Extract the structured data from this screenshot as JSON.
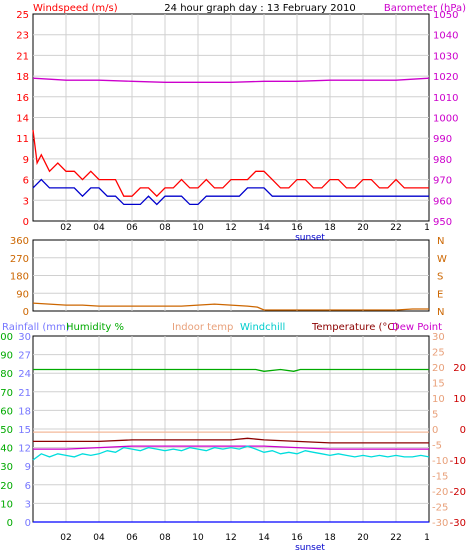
{
  "title": "24 hour graph day : 13 February 2010",
  "colors": {
    "wind_avg": "#0000cc",
    "wind_gust": "#ff0000",
    "barometer": "#cc00cc",
    "direction": "#cc6600",
    "rainfall": "#0000ff",
    "humidity": "#00aa00",
    "indoor_temp": "#f4b89a",
    "windchill": "#00dddd",
    "temperature": "#8b0000",
    "dew_point": "#cc00cc",
    "grid": "#d0d0d0",
    "frame": "#000000"
  },
  "chart_data": [
    {
      "type": "line",
      "title": "24 hour graph day : 13 February 2010",
      "left_label": "Windspeed (m/s)",
      "right_label": "Barometer (hPa)",
      "x_ticks": [
        "02",
        "04",
        "06",
        "08",
        "10",
        "12",
        "14",
        "16",
        "18",
        "20",
        "22"
      ],
      "x_marker": "sunset",
      "left_ticks": [
        "0",
        "3",
        "6",
        "9",
        "11",
        "14",
        "16",
        "18",
        "21",
        "23",
        "25"
      ],
      "right_ticks": [
        "950",
        "960",
        "970",
        "980",
        "990",
        "1000",
        "1010",
        "1020",
        "1030",
        "1040",
        "1050"
      ],
      "ylim_left": [
        0,
        25
      ],
      "ylim_right": [
        950,
        1050
      ],
      "x_range_hours": [
        0,
        24
      ],
      "grid": true,
      "series": [
        {
          "key": "barometer",
          "axis": "right",
          "x": [
            0,
            2,
            4,
            6,
            8,
            10,
            12,
            14,
            16,
            18,
            20,
            22,
            24
          ],
          "values": [
            1019,
            1018,
            1018,
            1017.5,
            1017,
            1017,
            1017,
            1017.5,
            1017.5,
            1018,
            1018,
            1018,
            1019
          ]
        },
        {
          "key": "wind_gust",
          "axis": "left",
          "x": [
            0,
            0.25,
            0.5,
            1,
            1.5,
            2,
            2.5,
            3,
            3.5,
            4,
            4.5,
            5,
            5.5,
            6,
            6.5,
            7,
            7.5,
            8,
            8.5,
            9,
            9.5,
            10,
            10.5,
            11,
            11.5,
            12,
            12.5,
            13,
            13.5,
            14,
            14.5,
            15,
            15.5,
            16,
            16.5,
            17,
            17.5,
            18,
            18.5,
            19,
            19.5,
            20,
            20.5,
            21,
            21.5,
            22,
            22.5,
            23,
            23.5,
            24
          ],
          "values": [
            11,
            7,
            8,
            6,
            7,
            6,
            6,
            5,
            6,
            5,
            5,
            5,
            3,
            3,
            4,
            4,
            3,
            4,
            4,
            5,
            4,
            4,
            5,
            4,
            4,
            5,
            5,
            5,
            6,
            6,
            5,
            4,
            4,
            5,
            5,
            4,
            4,
            5,
            5,
            4,
            4,
            5,
            5,
            4,
            4,
            5,
            4,
            4,
            4,
            4
          ]
        },
        {
          "key": "wind_avg",
          "axis": "left",
          "x": [
            0,
            0.5,
            1,
            1.5,
            2,
            2.5,
            3,
            3.5,
            4,
            4.5,
            5,
            5.5,
            6,
            6.5,
            7,
            7.5,
            8,
            8.5,
            9,
            9.5,
            10,
            10.5,
            11,
            11.5,
            12,
            12.5,
            13,
            13.5,
            14,
            14.5,
            15,
            15.5,
            16,
            16.5,
            17,
            17.5,
            18,
            18.5,
            19,
            19.5,
            20,
            20.5,
            21,
            21.5,
            22,
            22.5,
            23,
            23.5,
            24
          ],
          "values": [
            4,
            5,
            4,
            4,
            4,
            4,
            3,
            4,
            4,
            3,
            3,
            2,
            2,
            2,
            3,
            2,
            3,
            3,
            3,
            2,
            2,
            3,
            3,
            3,
            3,
            3,
            4,
            4,
            4,
            3,
            3,
            3,
            3,
            3,
            3,
            3,
            3,
            3,
            3,
            3,
            3,
            3,
            3,
            3,
            3,
            3,
            3,
            3,
            3
          ]
        }
      ]
    },
    {
      "type": "line",
      "title": "",
      "left_ticks": [
        "0",
        "90",
        "180",
        "270",
        "360"
      ],
      "right_ticks": [
        "N",
        "E",
        "S",
        "W",
        "N"
      ],
      "ylim": [
        0,
        360
      ],
      "x_range_hours": [
        0,
        24
      ],
      "grid": true,
      "series": [
        {
          "key": "direction",
          "x": [
            0,
            1,
            2,
            3,
            4,
            5,
            6,
            7,
            8,
            9,
            10,
            11,
            12,
            13,
            13.6,
            14,
            15,
            16,
            17,
            18,
            19,
            20,
            21,
            22,
            23,
            24
          ],
          "values": [
            40,
            35,
            30,
            30,
            25,
            25,
            25,
            25,
            25,
            25,
            30,
            35,
            30,
            25,
            20,
            5,
            5,
            5,
            5,
            5,
            5,
            5,
            5,
            5,
            10,
            10
          ]
        }
      ]
    },
    {
      "type": "line",
      "title": "",
      "labels": [
        "Rainfall (mm)",
        "Humidity %",
        "Indoor temp",
        "Windchill",
        "Temperature (°C)",
        "Dew Point"
      ],
      "x_ticks": [
        "02",
        "04",
        "06",
        "08",
        "10",
        "12",
        "14",
        "16",
        "18",
        "20",
        "22"
      ],
      "x_marker": "sunset",
      "humidity_ticks": [
        "0",
        "10",
        "20",
        "30",
        "40",
        "50",
        "60",
        "70",
        "80",
        "90",
        "100"
      ],
      "rain_ticks": [
        "0",
        "3",
        "6",
        "9",
        "12",
        "15",
        "18",
        "21",
        "24",
        "27",
        "30"
      ],
      "temp_ticks_orange": [
        "-30",
        "-25",
        "-20",
        "-15",
        "-10",
        "-5",
        "0",
        "5",
        "10",
        "15",
        "20",
        "25",
        "30"
      ],
      "temp_ticks_red": [
        "-30",
        "-20",
        "-10",
        "0",
        "10",
        "20"
      ],
      "ylim_humidity": [
        0,
        100
      ],
      "ylim_temp": [
        -30,
        30
      ],
      "x_range_hours": [
        0,
        24
      ],
      "grid": true,
      "series": [
        {
          "key": "humidity",
          "axis": "humidity",
          "x": [
            0,
            2,
            4,
            6,
            8,
            10,
            12,
            13.5,
            14,
            15,
            15.8,
            16.2,
            17,
            18,
            20,
            22,
            24
          ],
          "values": [
            82,
            82,
            82,
            82,
            82,
            82,
            82,
            82,
            81,
            82,
            81,
            82,
            82,
            82,
            82,
            82,
            82
          ]
        },
        {
          "key": "rainfall",
          "axis": "rain",
          "x": [
            0,
            24
          ],
          "values": [
            0,
            0
          ]
        },
        {
          "key": "indoor_temp",
          "axis": "temp",
          "x": [
            0,
            4,
            8,
            12,
            16,
            20,
            24
          ],
          "values": [
            -1,
            -1,
            -1,
            -1,
            -1,
            -1,
            -1
          ]
        },
        {
          "key": "temperature",
          "axis": "temp",
          "x": [
            0,
            2,
            4,
            6,
            8,
            10,
            12,
            13,
            14,
            16,
            18,
            20,
            22,
            24
          ],
          "values": [
            -4,
            -4,
            -4,
            -3.5,
            -3.5,
            -3.5,
            -3.5,
            -3,
            -3.5,
            -4,
            -4.5,
            -4.5,
            -4.5,
            -4.5
          ]
        },
        {
          "key": "dew_point",
          "axis": "temp",
          "x": [
            0,
            2,
            4,
            6,
            8,
            10,
            12,
            14,
            16,
            18,
            20,
            22,
            24
          ],
          "values": [
            -6.5,
            -6.5,
            -6,
            -5.5,
            -5.5,
            -5.5,
            -5.5,
            -5.5,
            -6,
            -6.5,
            -6.5,
            -6.5,
            -6.5
          ]
        },
        {
          "key": "windchill",
          "axis": "temp",
          "x": [
            0,
            0.5,
            1,
            1.5,
            2,
            2.5,
            3,
            3.5,
            4,
            4.5,
            5,
            5.5,
            6,
            6.5,
            7,
            7.5,
            8,
            8.5,
            9,
            9.5,
            10,
            10.5,
            11,
            11.5,
            12,
            12.5,
            13,
            13.5,
            14,
            14.5,
            15,
            15.5,
            16,
            16.5,
            17,
            17.5,
            18,
            18.5,
            19,
            19.5,
            20,
            20.5,
            21,
            21.5,
            22,
            22.5,
            23,
            23.5,
            24
          ],
          "values": [
            -10,
            -8,
            -9,
            -8,
            -8.5,
            -9,
            -8,
            -8.5,
            -8,
            -7,
            -7.5,
            -6,
            -6.5,
            -7,
            -6,
            -6.5,
            -7,
            -6.5,
            -7,
            -6,
            -6.5,
            -7,
            -6,
            -6.5,
            -6,
            -6.5,
            -5.5,
            -6.5,
            -7.5,
            -7,
            -8,
            -7.5,
            -8,
            -7,
            -7.5,
            -8,
            -8.5,
            -8,
            -8.5,
            -9,
            -8.5,
            -9,
            -8.5,
            -9,
            -8.5,
            -9,
            -9,
            -8.5,
            -9
          ]
        }
      ]
    }
  ]
}
